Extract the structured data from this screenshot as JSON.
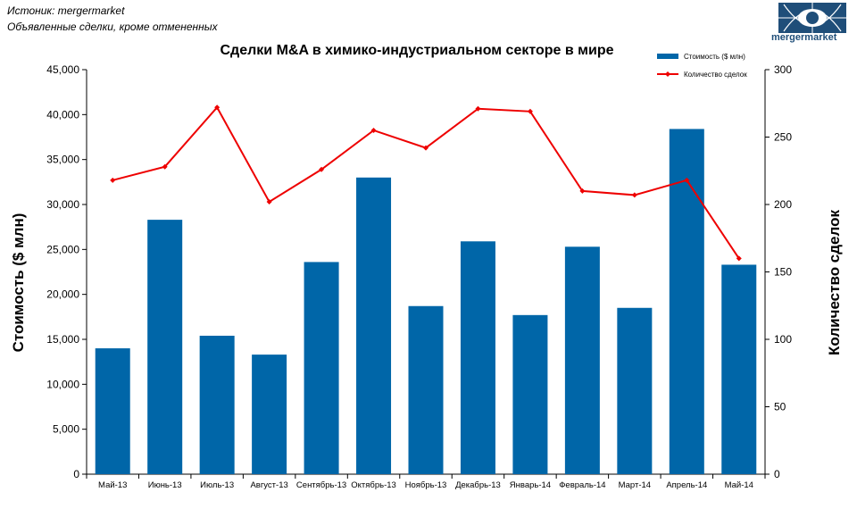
{
  "source_line": "Истоник: mergermarket",
  "subtitle_line": "Объявленные сделки, кроме отмененных",
  "logo": {
    "name": "mergermarket"
  },
  "chart_data": {
    "type": "bar",
    "title": "Сделки M&A в химико-индустриальном секторе в мире",
    "categories": [
      "Май-13",
      "Июнь-13",
      "Июль-13",
      "Август-13",
      "Сентябрь-13",
      "Октябрь-13",
      "Ноябрь-13",
      "Декабрь-13",
      "Январь-14",
      "Февраль-14",
      "Март-14",
      "Апрель-14",
      "Май-14"
    ],
    "series": [
      {
        "name": "Стоимость ($ млн)",
        "type": "bar",
        "axis": "left",
        "color": "#0066a8",
        "values": [
          14000,
          28300,
          15400,
          13300,
          23600,
          33000,
          18700,
          25900,
          17700,
          25300,
          18500,
          38400,
          23300
        ]
      },
      {
        "name": "Количество сделок",
        "type": "line",
        "axis": "right",
        "color": "#ee0000",
        "values": [
          218,
          228,
          272,
          202,
          226,
          255,
          242,
          271,
          269,
          210,
          207,
          218,
          160
        ]
      }
    ],
    "ylabel": "Стоимость  ($ млн)",
    "y2label": "Количество сделок",
    "ylim": [
      0,
      45000
    ],
    "y2lim": [
      0,
      300
    ],
    "yticks": [
      "0",
      "5,000",
      "10,000",
      "15,000",
      "20,000",
      "25,000",
      "30,000",
      "35,000",
      "40,000",
      "45,000"
    ],
    "y2ticks": [
      "0",
      "50",
      "100",
      "150",
      "200",
      "250",
      "300"
    ],
    "legend": "top-right",
    "grid": false
  }
}
